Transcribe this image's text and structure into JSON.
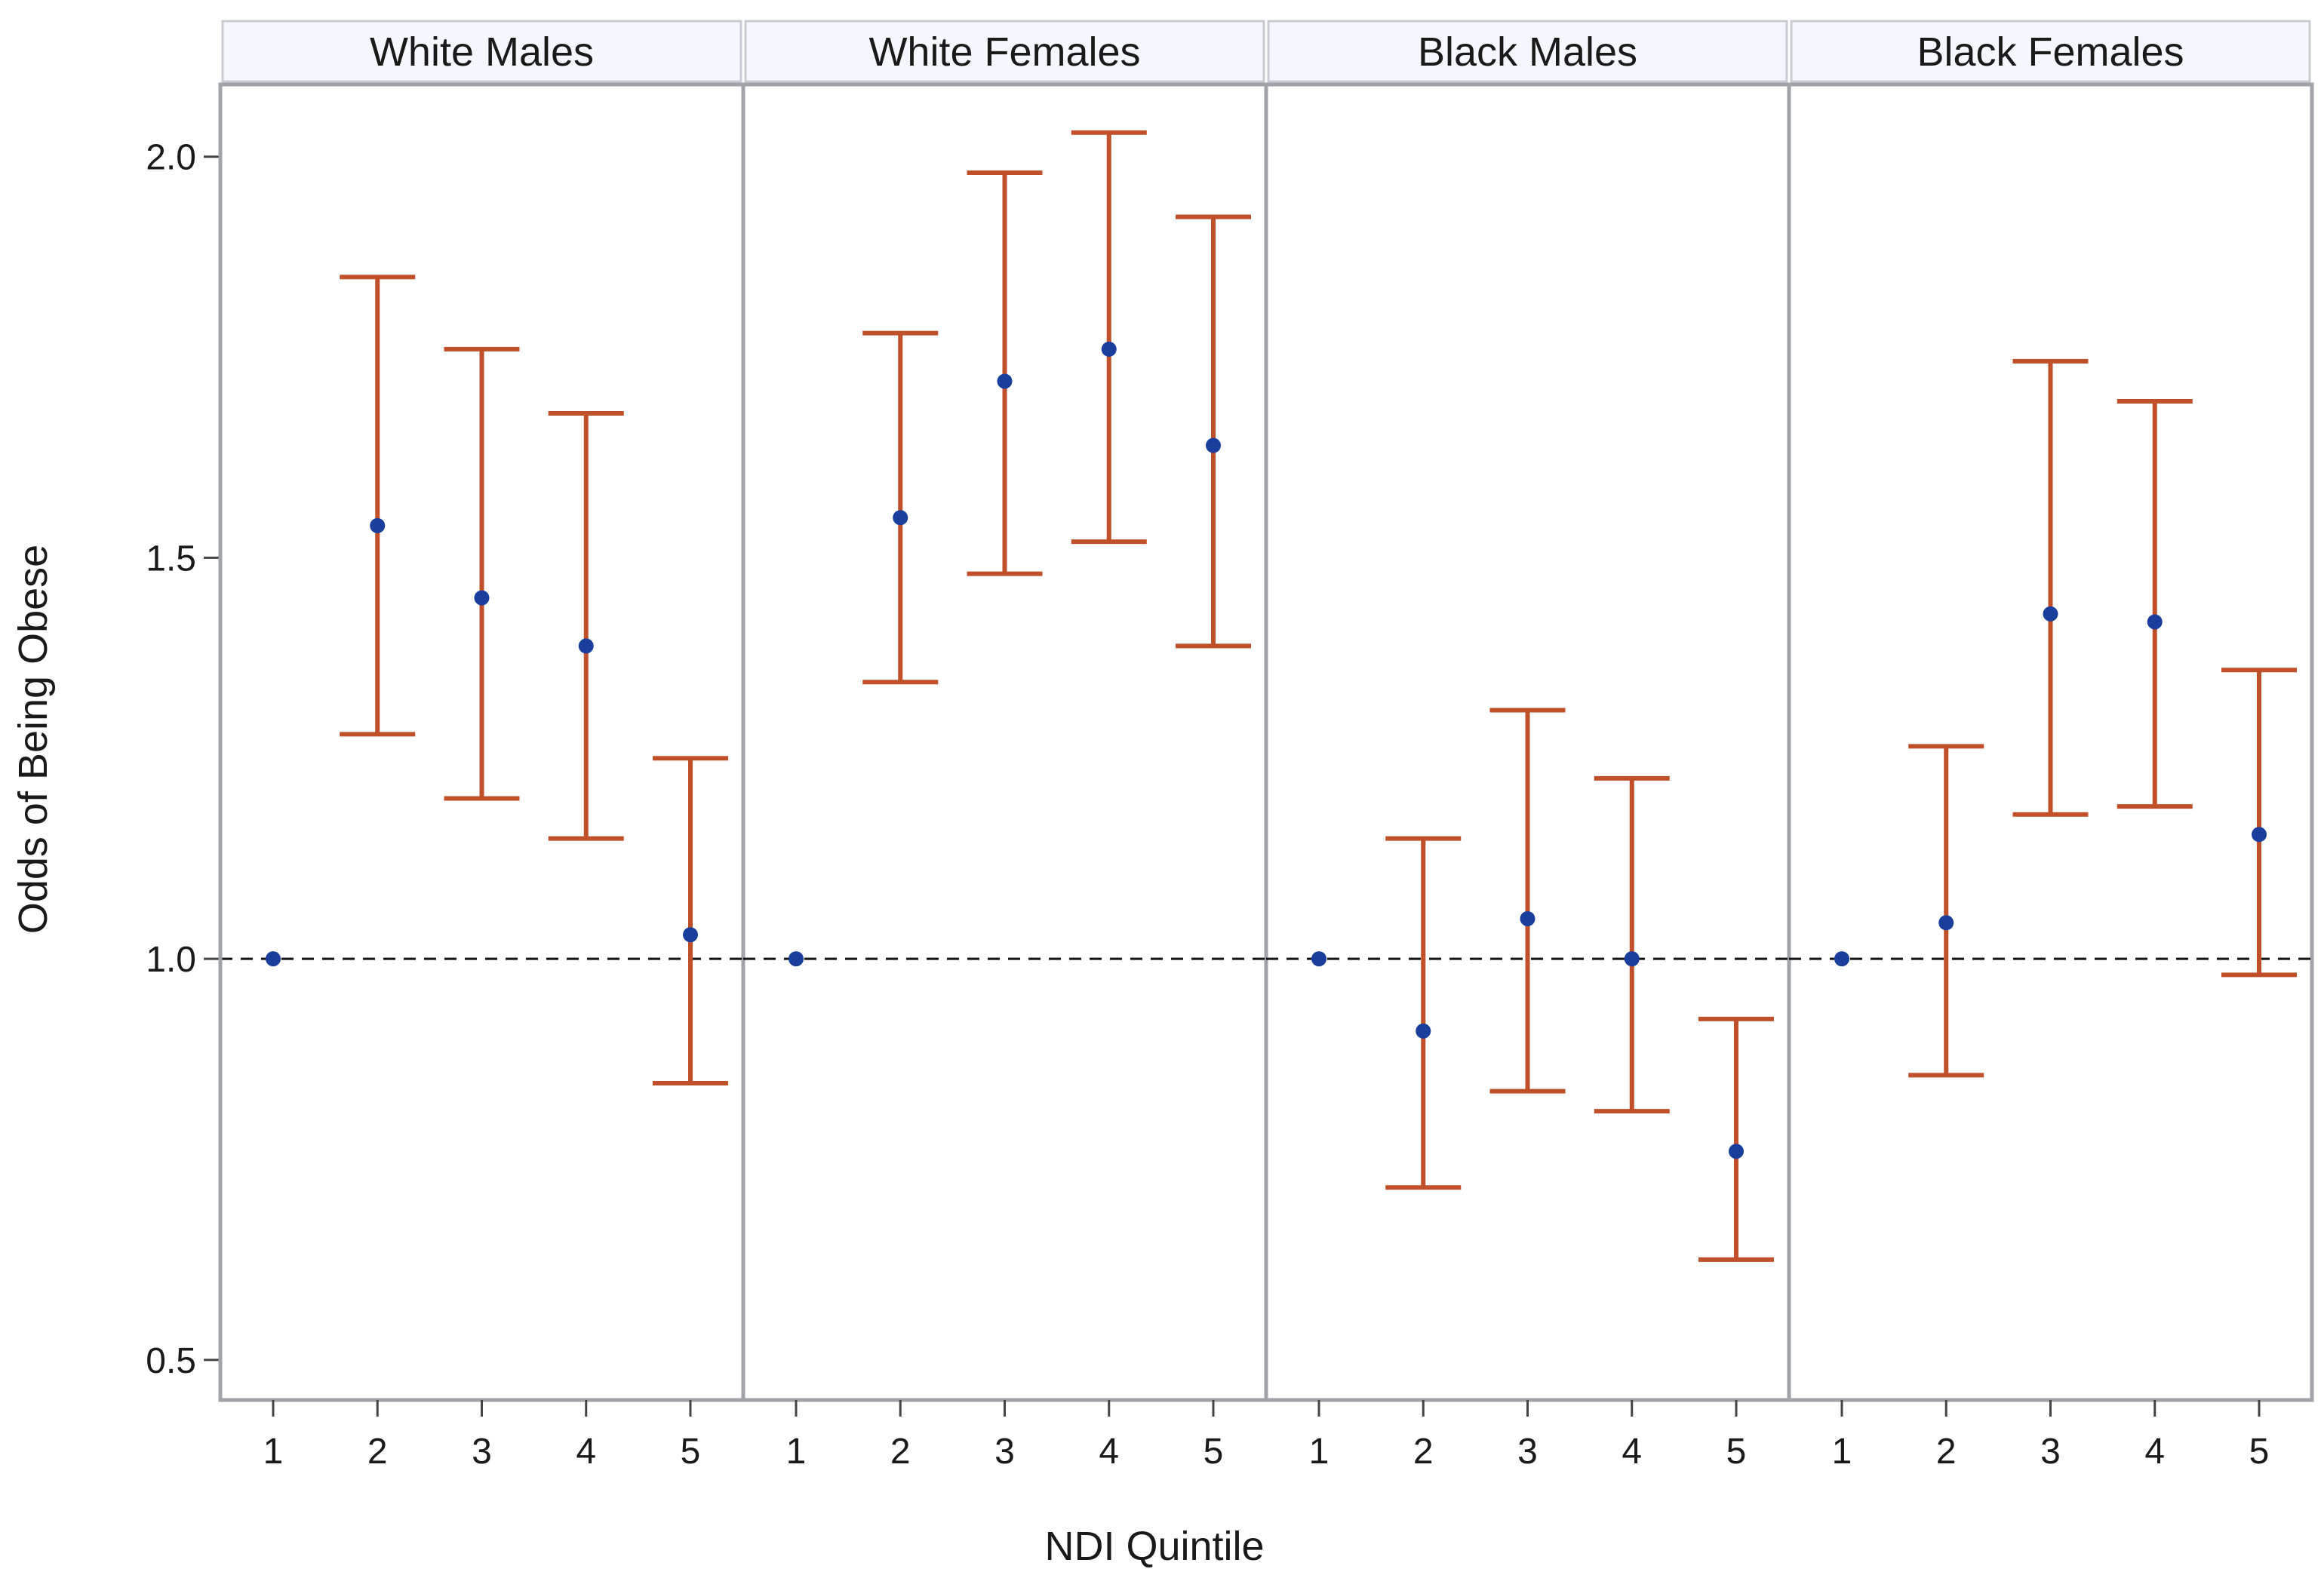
{
  "chart_data": {
    "type": "scatter",
    "subtype": "odds-ratio-with-confidence-intervals",
    "xlabel": "NDI Quintile",
    "ylabel": "Odds of Being Obese",
    "ylim": [
      0.45,
      2.09
    ],
    "yticks": [
      "0.5",
      "1.0",
      "1.5",
      "2.0"
    ],
    "reference_line": 1.0,
    "colors": {
      "ci": "#c0502a",
      "point": "#1a3e9c",
      "panel_border": "#a0a4a8",
      "strip": "#f4f7fe"
    },
    "panels": [
      {
        "label": "White Males",
        "x": [
          "1",
          "2",
          "3",
          "4",
          "5"
        ],
        "estimate": [
          1.0,
          1.54,
          1.45,
          1.39,
          1.03
        ],
        "lower": [
          null,
          1.28,
          1.2,
          1.15,
          0.845
        ],
        "upper": [
          null,
          1.85,
          1.76,
          1.68,
          1.25
        ]
      },
      {
        "label": "White Females",
        "x": [
          "1",
          "2",
          "3",
          "4",
          "5"
        ],
        "estimate": [
          1.0,
          1.55,
          1.72,
          1.76,
          1.64
        ],
        "lower": [
          null,
          1.345,
          1.48,
          1.52,
          1.39
        ],
        "upper": [
          null,
          1.78,
          1.98,
          2.03,
          1.925
        ]
      },
      {
        "label": "Black Males",
        "x": [
          "1",
          "2",
          "3",
          "4",
          "5"
        ],
        "estimate": [
          1.0,
          0.91,
          1.05,
          1.0,
          0.76
        ],
        "lower": [
          null,
          0.715,
          0.835,
          0.81,
          0.625
        ],
        "upper": [
          null,
          1.15,
          1.31,
          1.225,
          0.925
        ]
      },
      {
        "label": "Black Females",
        "x": [
          "1",
          "2",
          "3",
          "4",
          "5"
        ],
        "estimate": [
          1.0,
          1.045,
          1.43,
          1.42,
          1.155
        ],
        "lower": [
          null,
          0.855,
          1.18,
          1.19,
          0.98
        ],
        "upper": [
          null,
          1.265,
          1.745,
          1.695,
          1.36
        ]
      }
    ]
  }
}
